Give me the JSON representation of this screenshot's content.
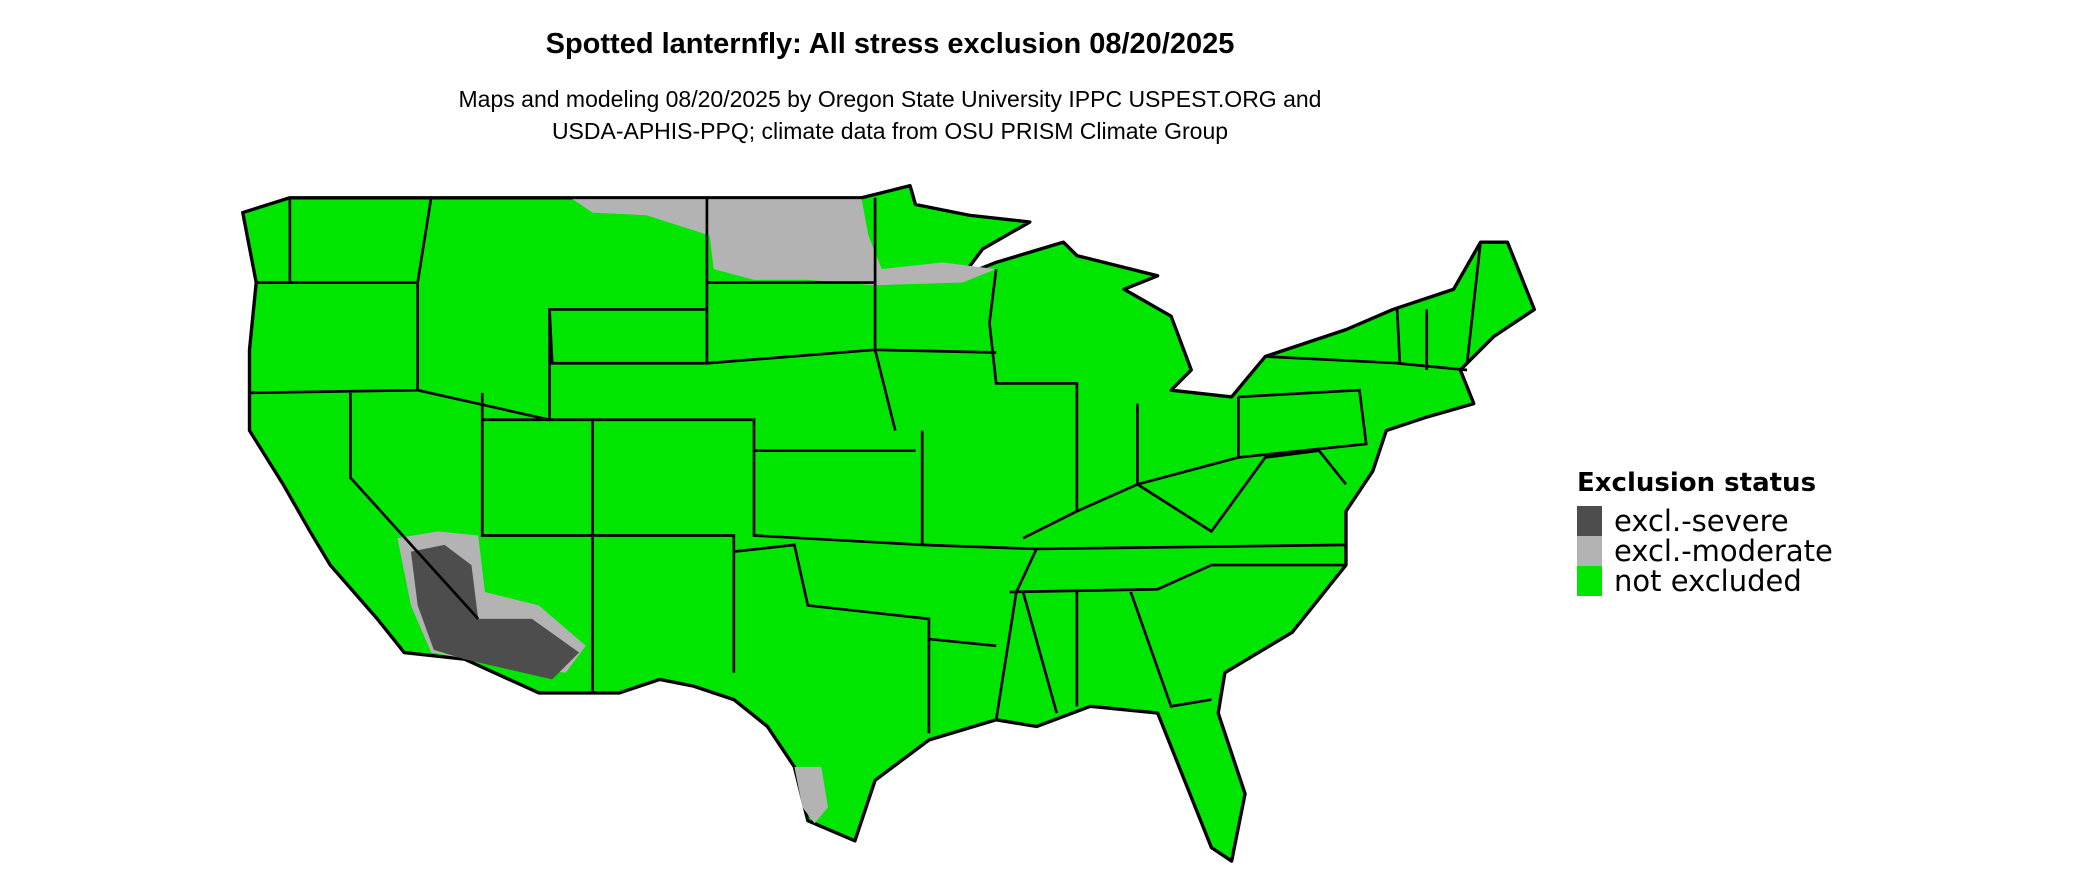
{
  "title": "Spotted lanternfly: All stress exclusion 08/20/2025",
  "subtitle_line1": "Maps and modeling 08/20/2025 by Oregon State University IPPC USPEST.ORG and",
  "subtitle_line2": "USDA-APHIS-PPQ; climate data from OSU PRISM Climate Group",
  "legend": {
    "title": "Exclusion status",
    "items": [
      {
        "label": "excl.-severe",
        "color": "#4d4d4d"
      },
      {
        "label": "excl.-moderate",
        "color": "#b3b3b3"
      },
      {
        "label": "not excluded",
        "color": "#00e600"
      }
    ]
  }
}
